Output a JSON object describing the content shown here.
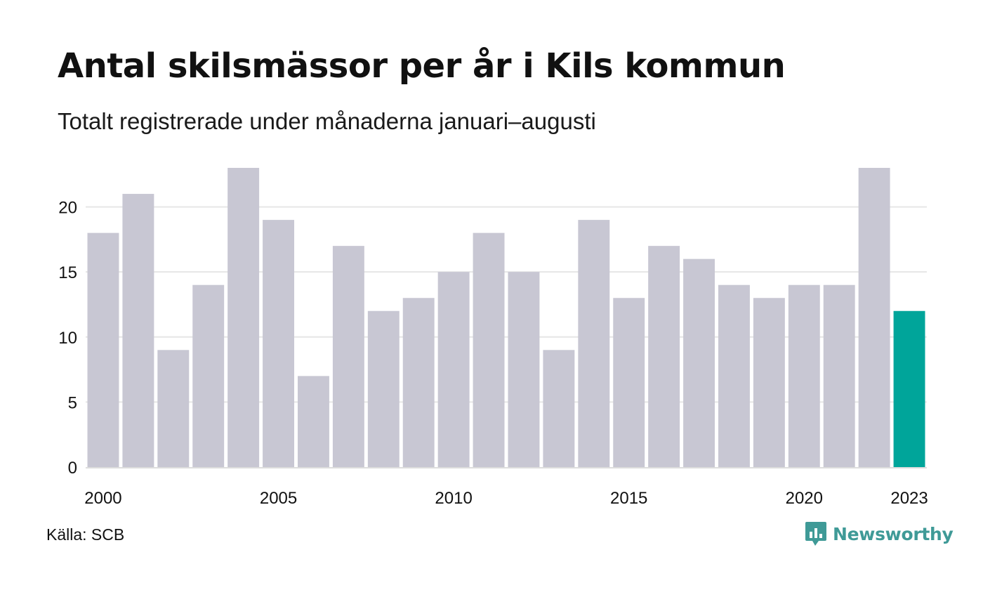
{
  "title": "Antal skilsmässor per år i Kils kommun",
  "subtitle": "Totalt registrerade under månaderna januari–augusti",
  "source": "Källa: SCB",
  "brand": {
    "name": "Newsworthy",
    "icon": "newsworthy-logo-icon"
  },
  "colors": {
    "bar": "#c8c7d3",
    "highlight": "#00a59a",
    "grid": "#e6e6e6",
    "brand": "#3f9a97"
  },
  "chart_data": {
    "type": "bar",
    "title": "Antal skilsmässor per år i Kils kommun",
    "subtitle": "Totalt registrerade under månaderna januari–augusti",
    "categories": [
      "2000",
      "2001",
      "2002",
      "2003",
      "2004",
      "2005",
      "2006",
      "2007",
      "2008",
      "2009",
      "2010",
      "2011",
      "2012",
      "2013",
      "2014",
      "2015",
      "2016",
      "2017",
      "2018",
      "2019",
      "2020",
      "2021",
      "2022",
      "2023"
    ],
    "values": [
      18,
      21,
      9,
      14,
      23,
      19,
      7,
      17,
      12,
      13,
      15,
      18,
      15,
      9,
      19,
      13,
      17,
      16,
      14,
      13,
      14,
      14,
      23,
      12
    ],
    "highlight_category": "2023",
    "x_tick_labels": [
      "2000",
      "2005",
      "2010",
      "2015",
      "2020",
      "2023"
    ],
    "y_ticks": [
      0,
      5,
      10,
      15,
      20
    ],
    "ylim": [
      0,
      23
    ],
    "xlabel": "",
    "ylabel": "",
    "grid": true,
    "legend": "none"
  }
}
